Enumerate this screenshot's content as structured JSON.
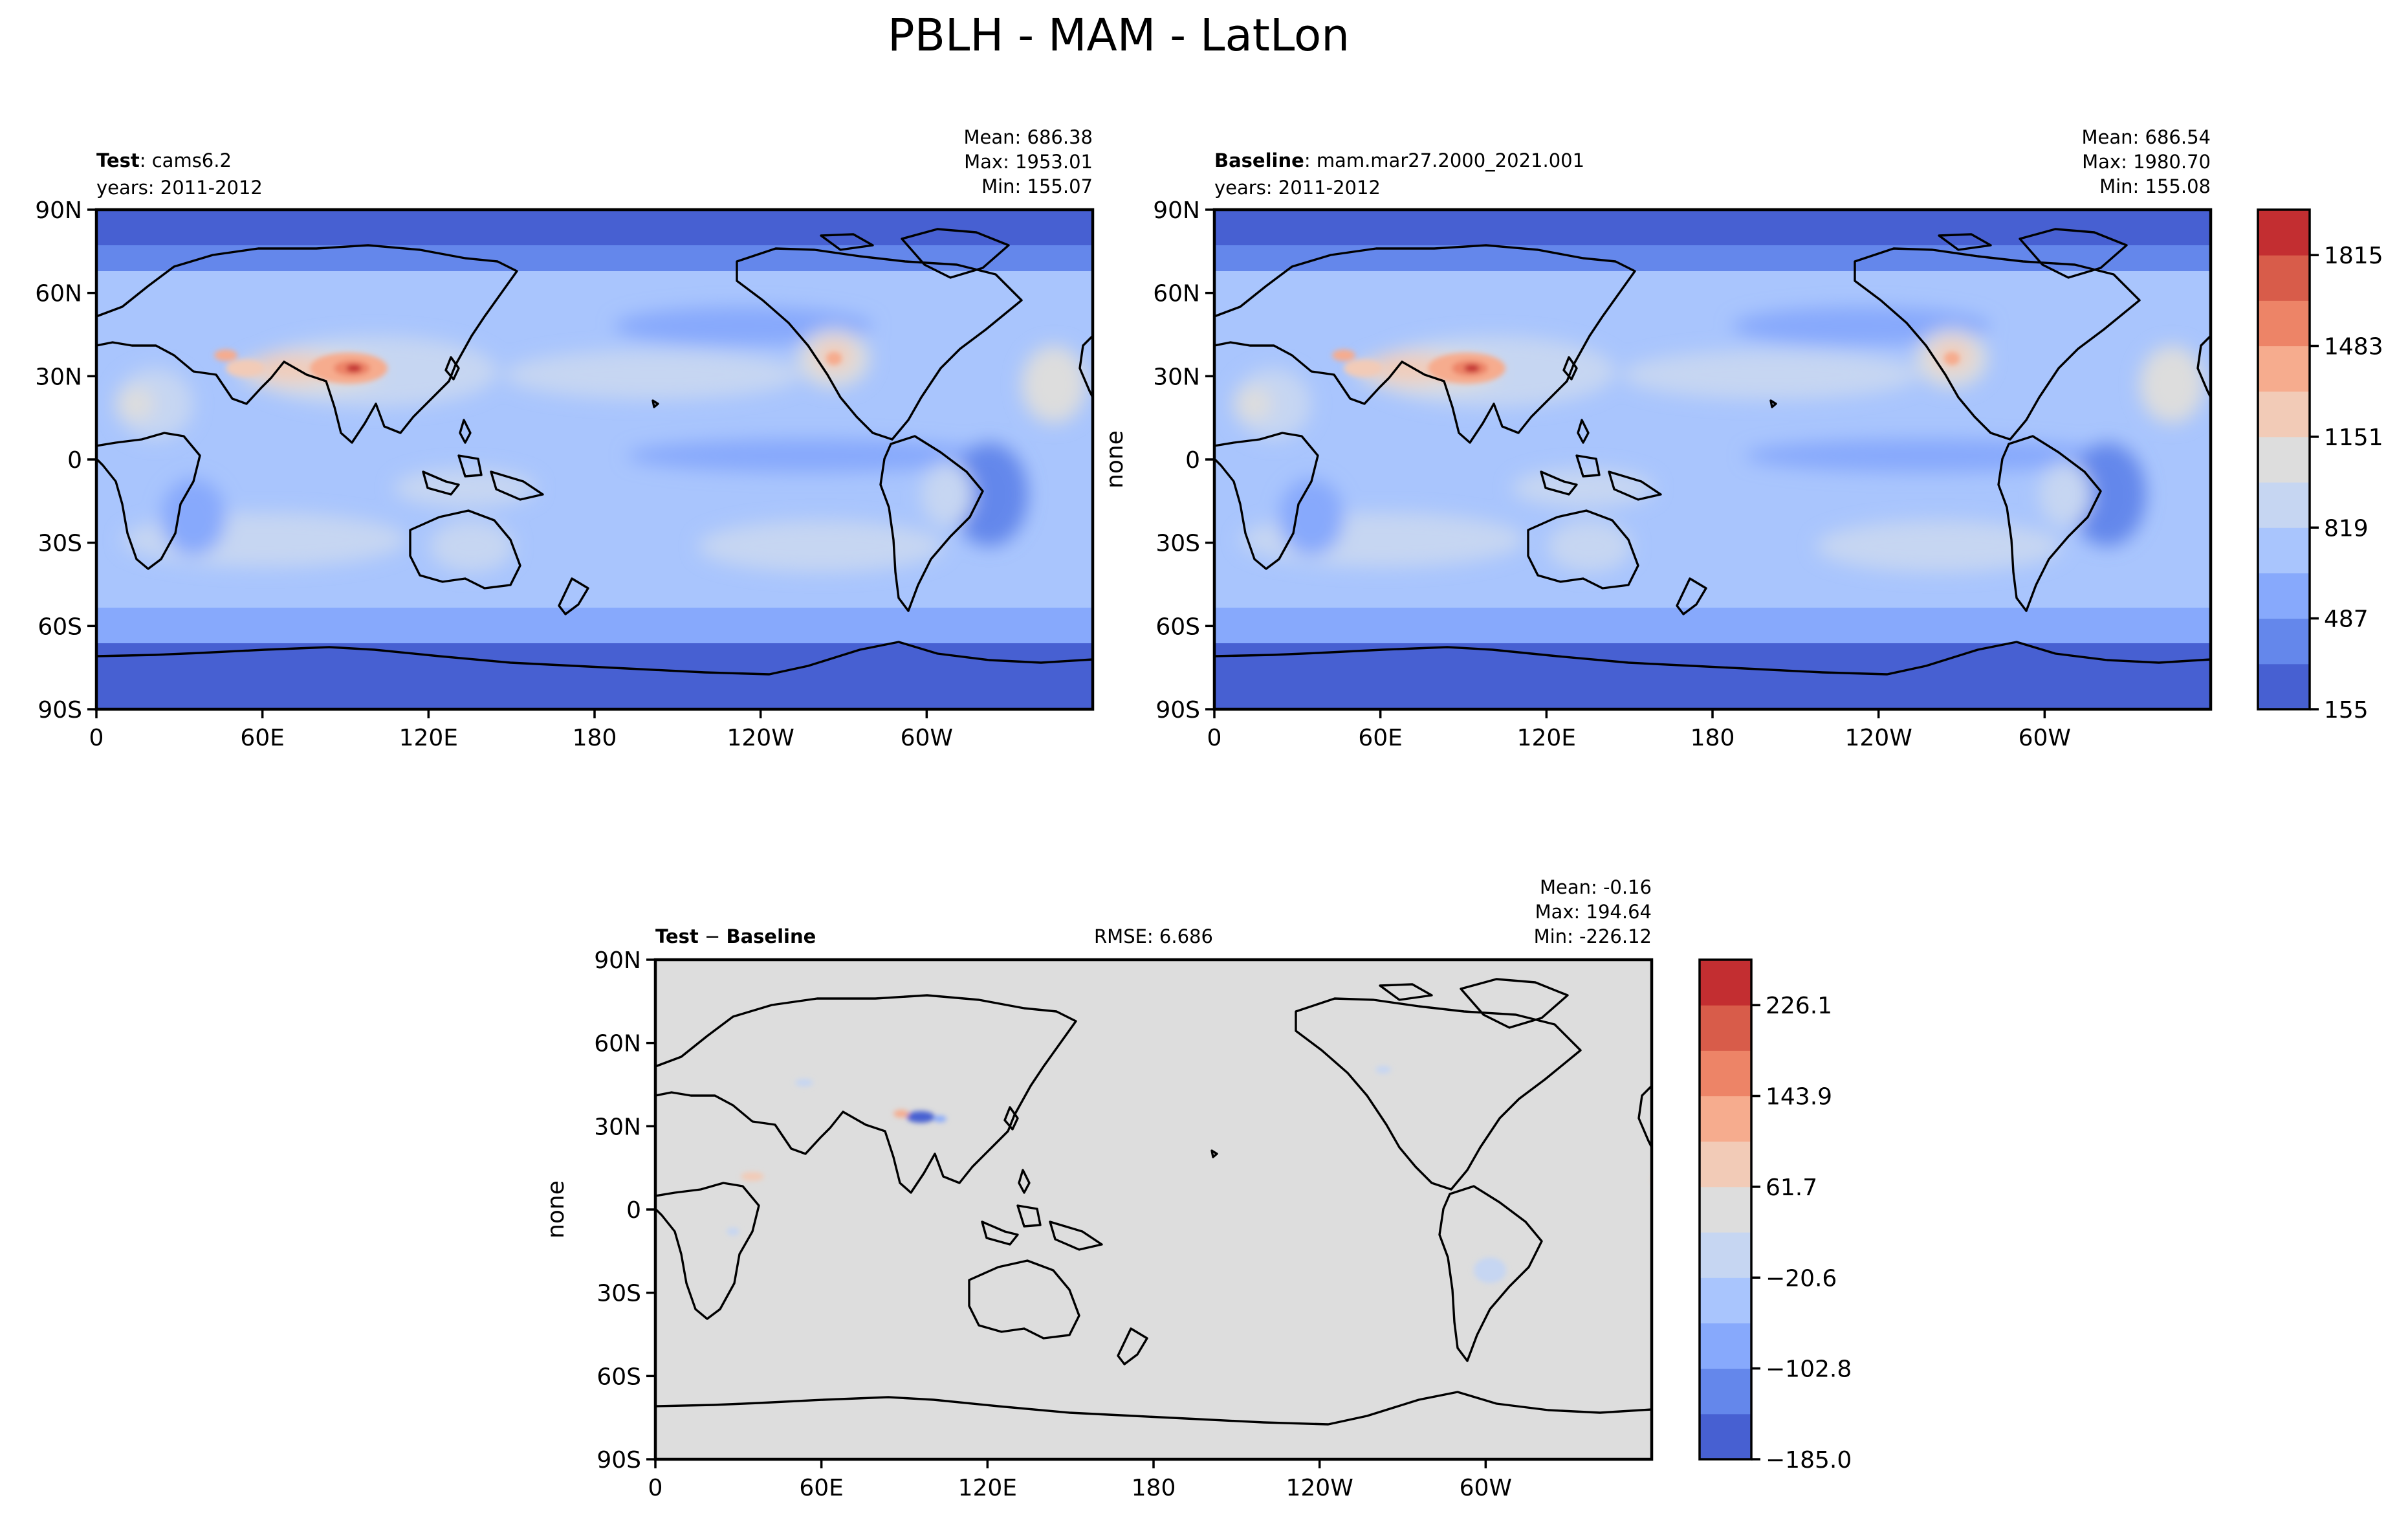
{
  "figure": {
    "suptitle": "PBLH - MAM - LatLon"
  },
  "panels": [
    {
      "id": "test",
      "label_bold": "Test",
      "label_sep": ": ",
      "label_rest": "cams6.2",
      "years": "years: 2011-2012",
      "stats": [
        "Mean: 686.38",
        "Max: 1953.01",
        "Min: 155.07"
      ],
      "ylabel": "",
      "rmse": ""
    },
    {
      "id": "baseline",
      "label_bold": "Baseline",
      "label_sep": ": ",
      "label_rest": "mam.mar27.2000_2021.001",
      "years": "years: 2011-2012",
      "stats": [
        "Mean: 686.54",
        "Max: 1980.70",
        "Min: 155.08"
      ],
      "ylabel": "none",
      "rmse": ""
    },
    {
      "id": "diff",
      "label_bold": "Test",
      "label_sep": " − ",
      "label_rest": "Baseline",
      "label_rest_bold": true,
      "years": "",
      "stats": [
        "Mean: -0.16",
        "Max: 194.64",
        "Min: -226.12"
      ],
      "ylabel": "none",
      "rmse": "RMSE: 6.686"
    }
  ],
  "axes": {
    "lat_ticks": [
      "90N",
      "60N",
      "30N",
      "0",
      "30S",
      "60S",
      "90S"
    ],
    "lon_ticks": [
      "0",
      "60E",
      "120E",
      "180",
      "120W",
      "60W"
    ]
  },
  "colorbars": [
    {
      "id": "abs",
      "colors": [
        "#4760d2",
        "#6487eb",
        "#87a9fc",
        "#a9c5fd",
        "#c6d6f2",
        "#dddddd",
        "#f2cbb7",
        "#f6ac8e",
        "#ed8467",
        "#d85c4a",
        "#c32e31"
      ],
      "ticks": [
        "155",
        "487",
        "819",
        "1151",
        "1483",
        "1815"
      ]
    },
    {
      "id": "diff",
      "colors": [
        "#4760d2",
        "#6487eb",
        "#87a9fc",
        "#a9c5fd",
        "#c6d6f2",
        "#dddddd",
        "#f2cbb7",
        "#f6ac8e",
        "#ed8467",
        "#d85c4a",
        "#c32e31"
      ],
      "ticks": [
        "−185.0",
        "−102.8",
        "−20.6",
        "61.7",
        "143.9",
        "226.1"
      ]
    }
  ]
}
